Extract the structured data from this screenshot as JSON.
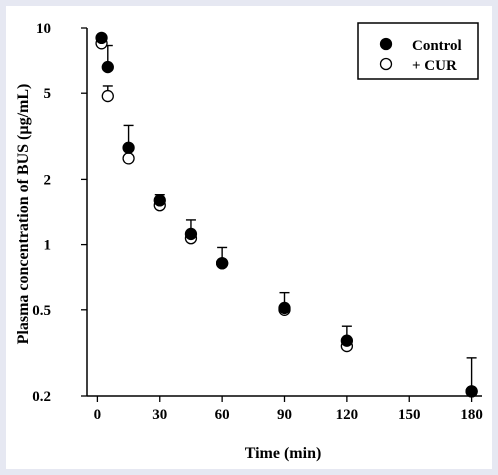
{
  "page": {
    "background": "#e6e8f2",
    "panel_color": "#ffffff"
  },
  "chart_data": {
    "type": "scatter",
    "title": "",
    "xlabel": "Time (min)",
    "ylabel": "Plasma concentration of BUS (µg/mL)",
    "xlim": [
      -5,
      185
    ],
    "ylim": [
      0.2,
      10
    ],
    "yscale": "log",
    "xticks": [
      0,
      30,
      60,
      90,
      120,
      150,
      180
    ],
    "yticks": [
      0.2,
      0.5,
      1,
      2,
      5,
      10
    ],
    "grid": false,
    "legend": "top-right",
    "series": [
      {
        "name": "Control",
        "marker": "filled-circle",
        "color": "#000000",
        "x": [
          2,
          5,
          15,
          30,
          45,
          60,
          90,
          120,
          180
        ],
        "y": [
          9.0,
          6.6,
          2.8,
          1.6,
          1.12,
          0.82,
          0.51,
          0.36,
          0.21
        ],
        "error_upper": [
          9.2,
          8.3,
          3.55,
          1.7,
          1.3,
          0.97,
          0.6,
          0.42,
          0.3
        ]
      },
      {
        "name": "+ CUR",
        "marker": "open-circle",
        "color": "#000000",
        "x": [
          2,
          5,
          15,
          30,
          45,
          60,
          90,
          120,
          180
        ],
        "y": [
          8.5,
          4.85,
          2.5,
          1.52,
          1.07,
          0.82,
          0.5,
          0.34,
          0.21
        ],
        "error_upper": [
          8.5,
          5.4,
          2.5,
          1.52,
          1.07,
          0.82,
          0.5,
          0.34,
          0.21
        ]
      }
    ]
  }
}
